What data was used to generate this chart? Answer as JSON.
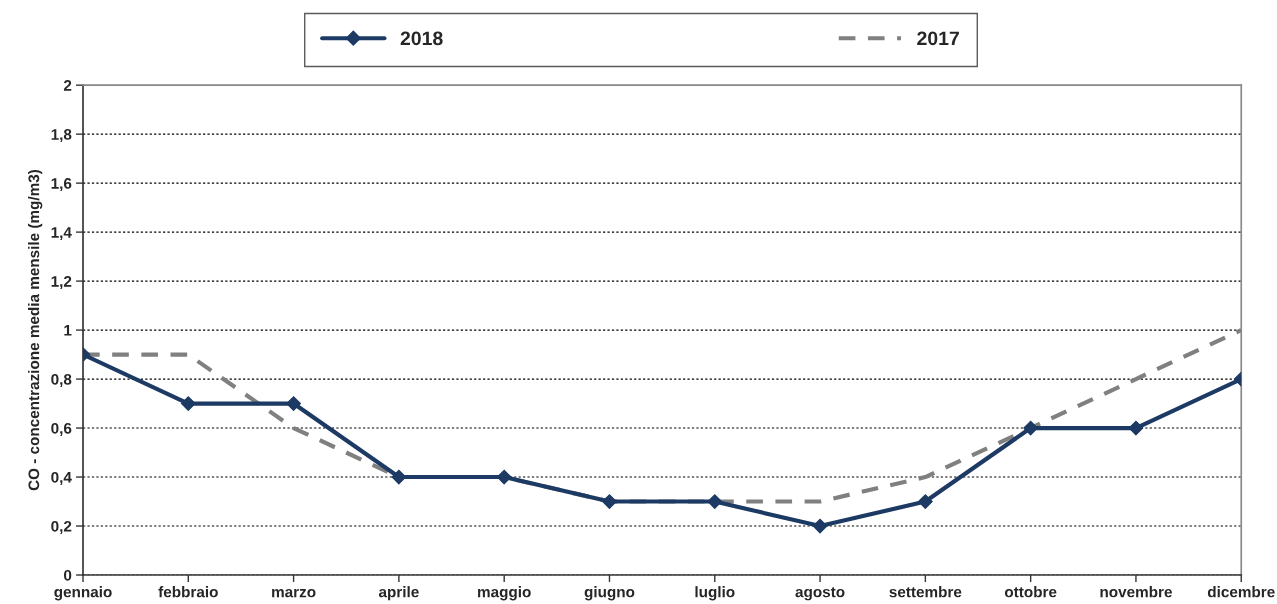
{
  "chart_data": {
    "type": "line",
    "ylabel": "CO - concentrazione media mensile (mg/m3)",
    "categories": [
      "gennaio",
      "febbraio",
      "marzo",
      "aprile",
      "maggio",
      "giugno",
      "luglio",
      "agosto",
      "settembre",
      "ottobre",
      "novembre",
      "dicembre"
    ],
    "series": [
      {
        "name": "2018",
        "color": "#1c3a64",
        "marker": "diamond",
        "line_style": "solid",
        "values": [
          0.9,
          0.7,
          0.7,
          0.4,
          0.4,
          0.3,
          0.3,
          0.2,
          0.3,
          0.6,
          0.6,
          0.8
        ]
      },
      {
        "name": "2017",
        "color": "#808080",
        "marker": "none",
        "line_style": "dashed",
        "values": [
          0.9,
          0.9,
          0.6,
          0.4,
          0.4,
          0.3,
          0.3,
          0.3,
          0.4,
          0.6,
          0.8,
          1.0
        ]
      }
    ],
    "ylim": [
      0,
      2
    ],
    "yticks": [
      0,
      {
        "value": 0.2,
        "label": "0,2"
      },
      {
        "value": 0.4,
        "label": "0,4"
      },
      {
        "value": 0.6,
        "label": "0,6"
      },
      {
        "value": 0.8,
        "label": "0,8"
      },
      1,
      {
        "value": 1.2,
        "label": "1,2"
      },
      {
        "value": 1.4,
        "label": "1,4"
      },
      {
        "value": 1.6,
        "label": "1,6"
      },
      {
        "value": 1.8,
        "label": "1,8"
      },
      2
    ],
    "grid": "y",
    "legend": "top"
  }
}
